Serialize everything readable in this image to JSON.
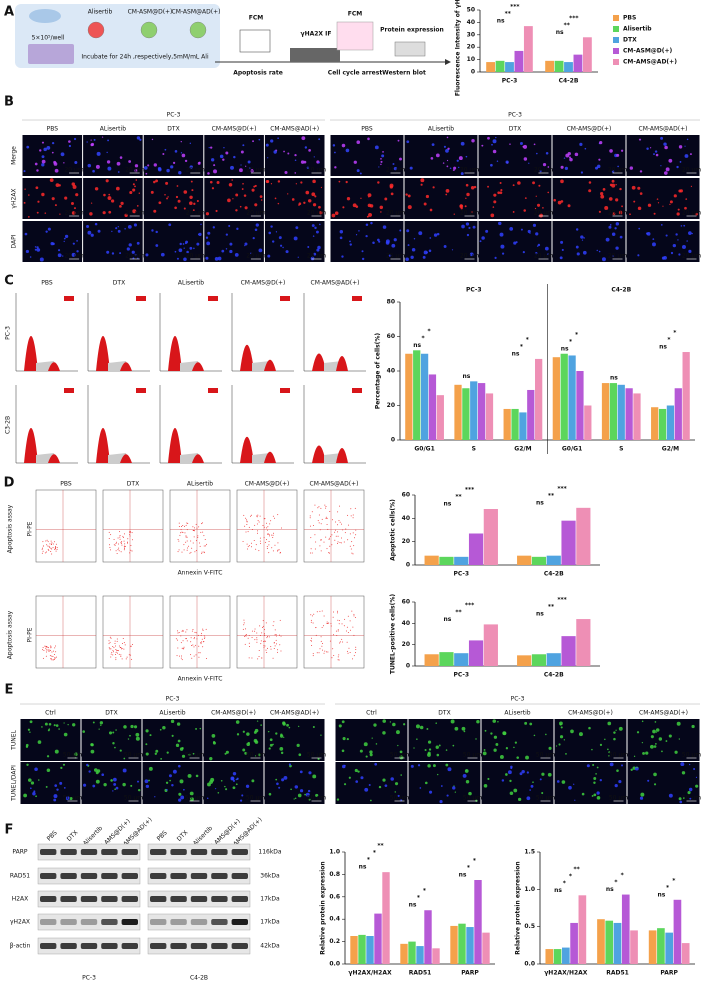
{
  "panels": {
    "labels": [
      "A",
      "B",
      "C",
      "D",
      "E",
      "F"
    ]
  },
  "schematic": {
    "seeding": "5×10⁵/well",
    "drugs": [
      "Alisertib",
      "CM-ASM@D(+)",
      "CM-ASM@AD(+)"
    ],
    "incubation": "Incubate for 24h ,respectively,5mM/mL Ali",
    "fcm_apoptosis": "FCM",
    "apoptosis": "Apoptosis rate",
    "if": "γHA2X IF",
    "fcm_cycle": "FCM",
    "cycle": "Cell cycle arrest",
    "protein": "Protein expression",
    "wb": "Western blot"
  },
  "panel_b": {
    "blocks": [
      "PC-3",
      "PC-3"
    ],
    "columns": [
      "PBS",
      "ALisertib",
      "DTX",
      "CM-AMS@D(+)",
      "CM-AMS@AD(+)"
    ],
    "rows": [
      "Merge",
      "γH2AX",
      "DAPI"
    ],
    "scale": "20 μm"
  },
  "panel_c": {
    "columns": [
      "PBS",
      "DTX",
      "ALisertib",
      "CM-AMS@D(+)",
      "CM-AMS@AD(+)"
    ],
    "rows": [
      "PC-3",
      "C3-2B"
    ]
  },
  "panel_d": {
    "columns": [
      "PBS",
      "DTX",
      "ALisertib",
      "CM-AMS@D(+)",
      "CM-AMS@AD(+)"
    ],
    "row_label": "Apoptosis assay",
    "y_axis": "PI-PE",
    "x_axis": "Annexin V-FITC"
  },
  "panel_e": {
    "blocks": [
      "PC-3",
      "PC-3"
    ],
    "columns": [
      "Ctrl",
      "DTX",
      "ALisertib",
      "CM-AMS@D(+)",
      "CM-AMS@AD(+)"
    ],
    "rows": [
      "TUNEL",
      "TUNEL/DAPI"
    ],
    "scale": "50 μm"
  },
  "panel_f": {
    "lanes": [
      "PBS",
      "DTX",
      "Alisertib",
      "CM-AMS@D(+)",
      "CM-AMS@AD(+)"
    ],
    "proteins": [
      "PARP",
      "RAD51",
      "H2AX",
      "γH2AX",
      "β-actin"
    ],
    "sizes": [
      "116kDa",
      "36kDa",
      "17kDa",
      "17kDa",
      "42kDa"
    ],
    "cells": [
      "PC-3",
      "C4-2B"
    ]
  },
  "chart_data": [
    {
      "type": "bar",
      "ylabel": "Fluorescence Intensity of γH2AX",
      "categories": [
        "PC-3",
        "C4-2B"
      ],
      "legend": "right",
      "series": [
        {
          "name": "PBS",
          "color": "#f4a14b",
          "values": [
            8,
            9
          ]
        },
        {
          "name": "Alisertib",
          "color": "#5cd65c",
          "values": [
            9,
            9
          ]
        },
        {
          "name": "DTX",
          "color": "#4fa3e0",
          "values": [
            8,
            8
          ]
        },
        {
          "name": "CM-ASM@D(+)",
          "color": "#b659d6",
          "values": [
            17,
            14
          ]
        },
        {
          "name": "CM-AMS@AD(+)",
          "color": "#ee8fb5",
          "values": [
            37,
            28
          ]
        }
      ],
      "ylim": [
        0,
        50
      ],
      "yticks": [
        0,
        10,
        20,
        30,
        40,
        50
      ],
      "annotations": [
        [
          "ns",
          "**",
          "***"
        ],
        [
          "ns",
          "**",
          "***"
        ]
      ]
    },
    {
      "type": "bar",
      "ylabel": "Percentage of cells(%)",
      "groups": [
        "PC-3",
        "C4-2B"
      ],
      "categories": [
        "G0/G1",
        "S",
        "G2/M",
        "G0/G1",
        "S",
        "G2/M"
      ],
      "series": [
        {
          "name": "PBS",
          "color": "#f4a14b",
          "values": [
            50,
            32,
            18,
            48,
            33,
            19
          ]
        },
        {
          "name": "Alisertib",
          "color": "#5cd65c",
          "values": [
            52,
            30,
            18,
            50,
            33,
            18
          ]
        },
        {
          "name": "DTX",
          "color": "#4fa3e0",
          "values": [
            50,
            34,
            16,
            49,
            32,
            20
          ]
        },
        {
          "name": "CM-ASM@D(+)",
          "color": "#b659d6",
          "values": [
            38,
            33,
            29,
            40,
            30,
            30
          ]
        },
        {
          "name": "CM-AMS@AD(+)",
          "color": "#ee8fb5",
          "values": [
            26,
            27,
            47,
            20,
            27,
            51
          ]
        }
      ],
      "ylim": [
        0,
        80
      ],
      "yticks": [
        0,
        20,
        40,
        60,
        80
      ],
      "annotations": [
        [
          "ns",
          "*",
          "*"
        ],
        [
          "ns"
        ],
        [
          "ns",
          "*",
          "*"
        ],
        [
          "ns",
          "*",
          "*"
        ],
        [
          "ns"
        ],
        [
          "ns",
          "*",
          "*"
        ]
      ]
    },
    {
      "type": "bar",
      "ylabel": "Apoptotic cells(%)",
      "categories": [
        "PC-3",
        "C4-2B"
      ],
      "series": [
        {
          "name": "PBS",
          "color": "#f4a14b",
          "values": [
            8,
            8
          ]
        },
        {
          "name": "Alisertib",
          "color": "#5cd65c",
          "values": [
            7,
            7
          ]
        },
        {
          "name": "DTX",
          "color": "#4fa3e0",
          "values": [
            7,
            8
          ]
        },
        {
          "name": "CM-ASM@D(+)",
          "color": "#b659d6",
          "values": [
            27,
            38
          ]
        },
        {
          "name": "CM-AMS@AD(+)",
          "color": "#ee8fb5",
          "values": [
            48,
            49
          ]
        }
      ],
      "ylim": [
        0,
        60
      ],
      "yticks": [
        0,
        20,
        40,
        60
      ],
      "annotations": [
        [
          "ns",
          "**",
          "***"
        ],
        [
          "ns",
          "**",
          "***"
        ]
      ]
    },
    {
      "type": "bar",
      "ylabel": "TUNEL-positive cells(%)",
      "categories": [
        "PC-3",
        "C4-2B"
      ],
      "series": [
        {
          "name": "PBS",
          "color": "#f4a14b",
          "values": [
            11,
            10
          ]
        },
        {
          "name": "Alisertib",
          "color": "#5cd65c",
          "values": [
            13,
            11
          ]
        },
        {
          "name": "DTX",
          "color": "#4fa3e0",
          "values": [
            12,
            12
          ]
        },
        {
          "name": "CM-ASM@D(+)",
          "color": "#b659d6",
          "values": [
            24,
            28
          ]
        },
        {
          "name": "CM-AMS@AD(+)",
          "color": "#ee8fb5",
          "values": [
            39,
            44
          ]
        }
      ],
      "ylim": [
        0,
        60
      ],
      "yticks": [
        0,
        20,
        40,
        60
      ],
      "annotations": [
        [
          "ns",
          "**",
          "***"
        ],
        [
          "ns",
          "**",
          "***"
        ]
      ]
    },
    {
      "type": "bar",
      "ylabel": "Relative protein expression",
      "categories": [
        "γH2AX/H2AX",
        "RAD51",
        "PARP"
      ],
      "series": [
        {
          "name": "PBS",
          "color": "#f4a14b",
          "values": [
            0.25,
            0.18,
            0.34
          ]
        },
        {
          "name": "Alisertib",
          "color": "#5cd65c",
          "values": [
            0.26,
            0.2,
            0.36
          ]
        },
        {
          "name": "DTX",
          "color": "#4fa3e0",
          "values": [
            0.25,
            0.16,
            0.33
          ]
        },
        {
          "name": "CM-ASM@D(+)",
          "color": "#b659d6",
          "values": [
            0.45,
            0.48,
            0.75
          ]
        },
        {
          "name": "CM-AMS@AD(+)",
          "color": "#ee8fb5",
          "values": [
            0.82,
            0.14,
            0.28
          ]
        }
      ],
      "ylim": [
        0,
        1
      ],
      "yticks": [
        {
          "value": 0,
          "label": "0.0"
        },
        0.2,
        0.4,
        0.6,
        0.8,
        {
          "value": 1,
          "label": "1.0"
        }
      ],
      "annotations": [
        [
          "ns",
          "*",
          "*",
          "**"
        ],
        [
          "ns",
          "*",
          "*"
        ],
        [
          "ns",
          "*",
          "*"
        ]
      ]
    },
    {
      "type": "bar",
      "ylabel": "Relative protein expression",
      "categories": [
        "γH2AX/H2AX",
        "RAD51",
        "PARP"
      ],
      "series": [
        {
          "name": "PBS",
          "color": "#f4a14b",
          "values": [
            0.2,
            0.6,
            0.45
          ]
        },
        {
          "name": "Alisertib",
          "color": "#5cd65c",
          "values": [
            0.2,
            0.58,
            0.48
          ]
        },
        {
          "name": "DTX",
          "color": "#4fa3e0",
          "values": [
            0.22,
            0.55,
            0.42
          ]
        },
        {
          "name": "CM-ASM@D(+)",
          "color": "#b659d6",
          "values": [
            0.55,
            0.93,
            0.86
          ]
        },
        {
          "name": "CM-AMS@AD(+)",
          "color": "#ee8fb5",
          "values": [
            0.92,
            0.45,
            0.28
          ]
        }
      ],
      "ylim": [
        0,
        1.5
      ],
      "yticks": [
        {
          "value": 0,
          "label": "0.0"
        },
        0.5,
        {
          "value": 1,
          "label": "1.0"
        },
        1.5
      ],
      "annotations": [
        [
          "ns",
          "*",
          "*",
          "**"
        ],
        [
          "ns",
          "*",
          "*"
        ],
        [
          "ns",
          "*",
          "*"
        ]
      ]
    }
  ]
}
